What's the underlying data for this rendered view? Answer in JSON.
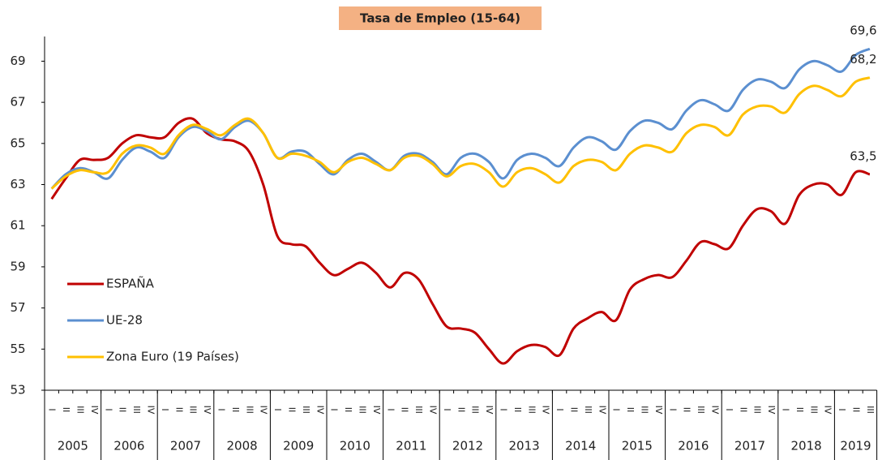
{
  "chart_data": {
    "type": "line",
    "title": "Tasa de Empleo (15-64)",
    "categories": [
      "I",
      "II",
      "III",
      "IV",
      "I",
      "II",
      "III",
      "IV",
      "I",
      "II",
      "III",
      "IV",
      "I",
      "II",
      "III",
      "IV",
      "I",
      "II",
      "III",
      "IV",
      "I",
      "II",
      "III",
      "IV",
      "I",
      "II",
      "III",
      "IV",
      "I",
      "II",
      "III",
      "IV",
      "I",
      "II",
      "III",
      "IV",
      "I",
      "II",
      "III",
      "IV",
      "I",
      "II",
      "III",
      "IV",
      "I",
      "II",
      "III",
      "IV",
      "I",
      "II",
      "III",
      "IV",
      "I",
      "II",
      "III",
      "IV",
      "I",
      "II",
      "III"
    ],
    "years": [
      "2005",
      "2006",
      "2007",
      "2008",
      "2009",
      "2010",
      "2011",
      "2012",
      "2013",
      "2014",
      "2015",
      "2016",
      "2017",
      "2018",
      "2019"
    ],
    "ylim": [
      53,
      70.2
    ],
    "yticks": [
      53,
      55,
      57,
      59,
      61,
      63,
      65,
      67,
      69
    ],
    "legend": "left",
    "series": [
      {
        "name": "ESPAÑA",
        "color": "#c00000",
        "values": [
          62.3,
          63.3,
          64.2,
          64.2,
          64.3,
          65.0,
          65.4,
          65.3,
          65.3,
          66.0,
          66.2,
          65.5,
          65.2,
          65.1,
          64.6,
          63.0,
          60.5,
          60.1,
          60.0,
          59.2,
          58.6,
          58.9,
          59.2,
          58.7,
          58.0,
          58.7,
          58.4,
          57.2,
          56.1,
          56.0,
          55.8,
          55.0,
          54.3,
          54.9,
          55.2,
          55.1,
          54.7,
          56.0,
          56.5,
          56.8,
          56.4,
          57.9,
          58.4,
          58.6,
          58.5,
          59.3,
          60.2,
          60.1,
          59.9,
          61.0,
          61.8,
          61.7,
          61.1,
          62.5,
          63.0,
          63.0,
          62.5,
          63.6,
          63.5
        ],
        "value_labels": [
          null,
          null,
          null,
          null,
          null,
          null,
          null,
          null,
          null,
          null,
          null,
          null,
          null,
          null,
          null,
          null,
          null,
          null,
          null,
          null,
          null,
          null,
          null,
          null,
          null,
          null,
          null,
          null,
          null,
          null,
          null,
          null,
          null,
          null,
          null,
          null,
          null,
          null,
          null,
          null,
          null,
          null,
          null,
          null,
          null,
          null,
          null,
          null,
          null,
          null,
          null,
          null,
          null,
          null,
          null,
          null,
          null,
          null,
          "63,5"
        ]
      },
      {
        "name": "UE-28",
        "color": "#5b8fd0",
        "values": [
          62.8,
          63.5,
          63.8,
          63.6,
          63.3,
          64.2,
          64.8,
          64.6,
          64.3,
          65.3,
          65.8,
          65.6,
          65.2,
          65.8,
          66.1,
          65.5,
          64.3,
          64.6,
          64.6,
          64.0,
          63.5,
          64.2,
          64.5,
          64.1,
          63.7,
          64.4,
          64.5,
          64.1,
          63.5,
          64.3,
          64.5,
          64.1,
          63.3,
          64.2,
          64.5,
          64.3,
          63.9,
          64.8,
          65.3,
          65.1,
          64.7,
          65.6,
          66.1,
          66.0,
          65.7,
          66.6,
          67.1,
          66.9,
          66.6,
          67.6,
          68.1,
          68.0,
          67.7,
          68.6,
          69.0,
          68.8,
          68.5,
          69.3,
          69.6
        ],
        "value_labels": [
          null,
          null,
          null,
          null,
          null,
          null,
          null,
          null,
          null,
          null,
          null,
          null,
          null,
          null,
          null,
          null,
          null,
          null,
          null,
          null,
          null,
          null,
          null,
          null,
          null,
          null,
          null,
          null,
          null,
          null,
          null,
          null,
          null,
          null,
          null,
          null,
          null,
          null,
          null,
          null,
          null,
          null,
          null,
          null,
          null,
          null,
          null,
          null,
          null,
          null,
          null,
          null,
          null,
          null,
          null,
          null,
          null,
          null,
          "69,6"
        ]
      },
      {
        "name": "Zona Euro (19 Países)",
        "color": "#ffc000",
        "values": [
          62.8,
          63.4,
          63.7,
          63.6,
          63.6,
          64.5,
          64.9,
          64.8,
          64.5,
          65.4,
          65.9,
          65.7,
          65.4,
          65.9,
          66.2,
          65.5,
          64.3,
          64.5,
          64.4,
          64.1,
          63.6,
          64.1,
          64.3,
          64.0,
          63.7,
          64.3,
          64.4,
          64.0,
          63.4,
          63.9,
          64.0,
          63.6,
          62.9,
          63.6,
          63.8,
          63.5,
          63.1,
          63.9,
          64.2,
          64.1,
          63.7,
          64.5,
          64.9,
          64.8,
          64.6,
          65.5,
          65.9,
          65.8,
          65.4,
          66.4,
          66.8,
          66.8,
          66.5,
          67.4,
          67.8,
          67.6,
          67.3,
          68.0,
          68.2
        ],
        "value_labels": [
          null,
          null,
          null,
          null,
          null,
          null,
          null,
          null,
          null,
          null,
          null,
          null,
          null,
          null,
          null,
          null,
          null,
          null,
          null,
          null,
          null,
          null,
          null,
          null,
          null,
          null,
          null,
          null,
          null,
          null,
          null,
          null,
          null,
          null,
          null,
          null,
          null,
          null,
          null,
          null,
          null,
          null,
          null,
          null,
          null,
          null,
          null,
          null,
          null,
          null,
          null,
          null,
          null,
          null,
          null,
          null,
          null,
          null,
          "68,2"
        ]
      }
    ]
  }
}
